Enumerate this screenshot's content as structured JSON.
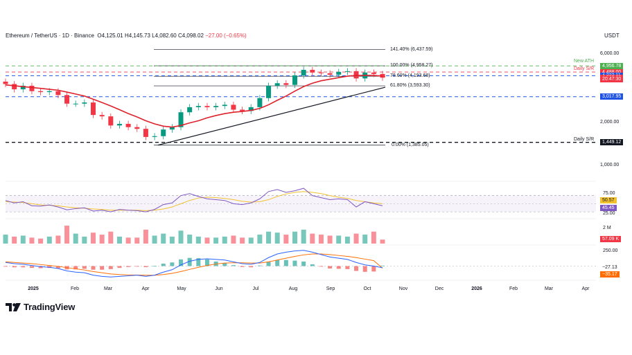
{
  "header": {
    "symbol": "Ethereum / TetherUS · 1D · Binance",
    "open": "O4,125.01",
    "high": "H4,145.73",
    "low": "L4,082.60",
    "close": "C4,098.02",
    "change": "−27.00 (−0.65%)",
    "currency": "USDT"
  },
  "brand": {
    "name": "TradingView",
    "icon": "tradingview-logo-icon"
  },
  "colors": {
    "up": "#089981",
    "down": "#f23645",
    "ema": "#e0202a",
    "rsi": "#7e57c2",
    "rsi_ma": "#f2c12e",
    "macd": "#2962ff",
    "signal": "#ff6d00",
    "ath": "#4caf50",
    "support": "#1e53e5"
  },
  "chart_data": [
    {
      "type": "candlestick",
      "title": "Ethereum / TetherUS · 1D · Binance",
      "y_scale": "log",
      "y_ticks": [
        "6,000.00",
        "4,000.00",
        "2,000.00",
        "1,000.00"
      ],
      "x_ticks": [
        "2025",
        "Feb",
        "Mar",
        "Apr",
        "May",
        "Jun",
        "Jul",
        "Aug",
        "Sep",
        "Oct",
        "Nov",
        "Dec",
        "2026",
        "Feb",
        "Mar",
        "Apr"
      ],
      "price_series": {
        "dates": [
          "2024-12-16",
          "2024-12-23",
          "2024-12-30",
          "2025-01-06",
          "2025-01-13",
          "2025-01-20",
          "2025-01-27",
          "2025-02-03",
          "2025-02-10",
          "2025-02-17",
          "2025-02-24",
          "2025-03-03",
          "2025-03-10",
          "2025-03-17",
          "2025-03-24",
          "2025-03-31",
          "2025-04-07",
          "2025-04-14",
          "2025-04-21",
          "2025-04-28",
          "2025-05-05",
          "2025-05-12",
          "2025-05-19",
          "2025-05-26",
          "2025-06-02",
          "2025-06-09",
          "2025-06-16",
          "2025-06-23",
          "2025-06-30",
          "2025-07-07",
          "2025-07-14",
          "2025-07-21",
          "2025-07-28",
          "2025-08-04",
          "2025-08-11",
          "2025-08-18",
          "2025-08-25",
          "2025-09-01",
          "2025-09-08",
          "2025-09-15",
          "2025-09-22",
          "2025-09-29",
          "2025-10-06",
          "2025-10-13"
        ],
        "close": [
          3700,
          3400,
          3600,
          3300,
          3250,
          3300,
          3100,
          2700,
          2700,
          2750,
          2250,
          2200,
          1900,
          1950,
          1850,
          1800,
          1580,
          1600,
          1780,
          1850,
          2350,
          2550,
          2600,
          2550,
          2600,
          2650,
          2450,
          2400,
          2550,
          2950,
          3600,
          3750,
          3650,
          4250,
          4650,
          4450,
          4400,
          4300,
          4500,
          4550,
          4050,
          4450,
          4350,
          4098
        ],
        "ema_50": [
          3650,
          3600,
          3550,
          3500,
          3450,
          3400,
          3350,
          3250,
          3150,
          3050,
          2900,
          2750,
          2600,
          2450,
          2300,
          2180,
          2050,
          1950,
          1880,
          1850,
          1900,
          1980,
          2050,
          2150,
          2230,
          2300,
          2350,
          2380,
          2420,
          2500,
          2650,
          2850,
          3050,
          3300,
          3550,
          3750,
          3900,
          4000,
          4100,
          4200,
          4250,
          4250,
          4250,
          4200
        ]
      },
      "levels": [
        {
          "label": "141.40% (6,437.59)",
          "value": 6437.59
        },
        {
          "label": "100.00% (4,958.27)",
          "value": 4958.27
        },
        {
          "label": "78.60% (4,193.68)",
          "value": 4193.68
        },
        {
          "label": "61.80% (3,593.30)",
          "value": 3593.3
        },
        {
          "label": "0.00% (1,385.05)",
          "value": 1385.05
        }
      ],
      "annotations": [
        {
          "label": "New ATH",
          "value": 4956.78
        },
        {
          "label": "Daily S/R",
          "value": 4488.0
        },
        {
          "label": "Daily S/R",
          "value": 1449.12
        }
      ],
      "price_tags": [
        {
          "text": "4,956.78",
          "color": "#4caf50",
          "value": 4956.78
        },
        {
          "text": "4,488.00",
          "color": "#f23645",
          "value": 4488.0
        },
        {
          "text": "4,239.88",
          "color": "#e0202a",
          "value": 4239.88
        },
        {
          "text": "4,232.11",
          "color": "#1e53e5",
          "value": 4232.11
        },
        {
          "text": "4,098.02",
          "color": "#f23645",
          "value": 4098.02
        },
        {
          "text": "20:47:30",
          "color": "#f23645",
          "value": 3980
        },
        {
          "text": "3,017.95",
          "color": "#1e53e5",
          "value": 3017.95
        },
        {
          "text": "1,449.12",
          "color": "#131722",
          "value": 1449.12
        }
      ]
    },
    {
      "type": "line",
      "name": "RSI",
      "ylim": [
        20,
        95
      ],
      "y_ticks": [
        "75.00",
        "25.00"
      ],
      "bands": [
        30,
        70
      ],
      "tags": [
        {
          "text": "50.57",
          "color": "#f2c12e"
        },
        {
          "text": "45.45",
          "color": "#7e57c2"
        }
      ],
      "rsi": [
        58,
        52,
        55,
        45,
        44,
        47,
        42,
        35,
        38,
        40,
        32,
        34,
        30,
        36,
        34,
        33,
        30,
        36,
        48,
        52,
        70,
        75,
        68,
        62,
        60,
        58,
        50,
        48,
        52,
        62,
        80,
        85,
        78,
        82,
        88,
        70,
        65,
        60,
        62,
        60,
        42,
        55,
        50,
        45
      ],
      "rsi_ma": [
        55,
        54,
        53,
        50,
        47,
        46,
        45,
        42,
        40,
        39,
        37,
        36,
        34,
        34,
        34,
        34,
        33,
        34,
        37,
        42,
        50,
        58,
        64,
        66,
        65,
        63,
        60,
        56,
        54,
        55,
        60,
        68,
        74,
        78,
        80,
        78,
        75,
        70,
        66,
        63,
        58,
        55,
        52,
        50
      ]
    },
    {
      "type": "bar",
      "name": "Volume",
      "y_ticks": [
        "2 M"
      ],
      "tags": [
        {
          "text": "57.09 K",
          "color": "#f23645"
        }
      ],
      "values": [
        0.45,
        0.35,
        0.4,
        0.3,
        0.25,
        0.35,
        0.4,
        0.9,
        0.5,
        0.35,
        0.55,
        0.45,
        0.6,
        0.35,
        0.3,
        0.3,
        0.7,
        0.4,
        0.5,
        0.35,
        0.65,
        0.45,
        0.35,
        0.3,
        0.3,
        0.35,
        0.4,
        0.3,
        0.3,
        0.45,
        0.6,
        0.55,
        0.45,
        0.6,
        0.7,
        0.5,
        0.45,
        0.4,
        0.4,
        0.35,
        0.5,
        0.45,
        0.6,
        0.2
      ]
    },
    {
      "type": "line",
      "name": "MACD",
      "y_ticks": [
        "250.00"
      ],
      "tags": [
        {
          "text": "−27.13",
          "color": "#ff6d00"
        },
        {
          "text": "−35.17",
          "color": "#ff6d00"
        }
      ],
      "macd": [
        60,
        40,
        30,
        10,
        -10,
        -20,
        -40,
        -80,
        -100,
        -110,
        -150,
        -170,
        -180,
        -170,
        -160,
        -150,
        -170,
        -150,
        -100,
        -60,
        20,
        80,
        110,
        120,
        110,
        100,
        70,
        40,
        30,
        60,
        140,
        200,
        230,
        250,
        260,
        230,
        190,
        150,
        130,
        110,
        60,
        20,
        0,
        -27
      ],
      "signal": [
        70,
        60,
        50,
        40,
        25,
        10,
        -5,
        -25,
        -45,
        -65,
        -90,
        -110,
        -130,
        -140,
        -145,
        -148,
        -152,
        -152,
        -140,
        -120,
        -90,
        -55,
        -20,
        10,
        35,
        50,
        55,
        55,
        50,
        50,
        70,
        100,
        130,
        160,
        185,
        200,
        200,
        190,
        175,
        160,
        140,
        115,
        90,
        -35
      ]
    }
  ]
}
